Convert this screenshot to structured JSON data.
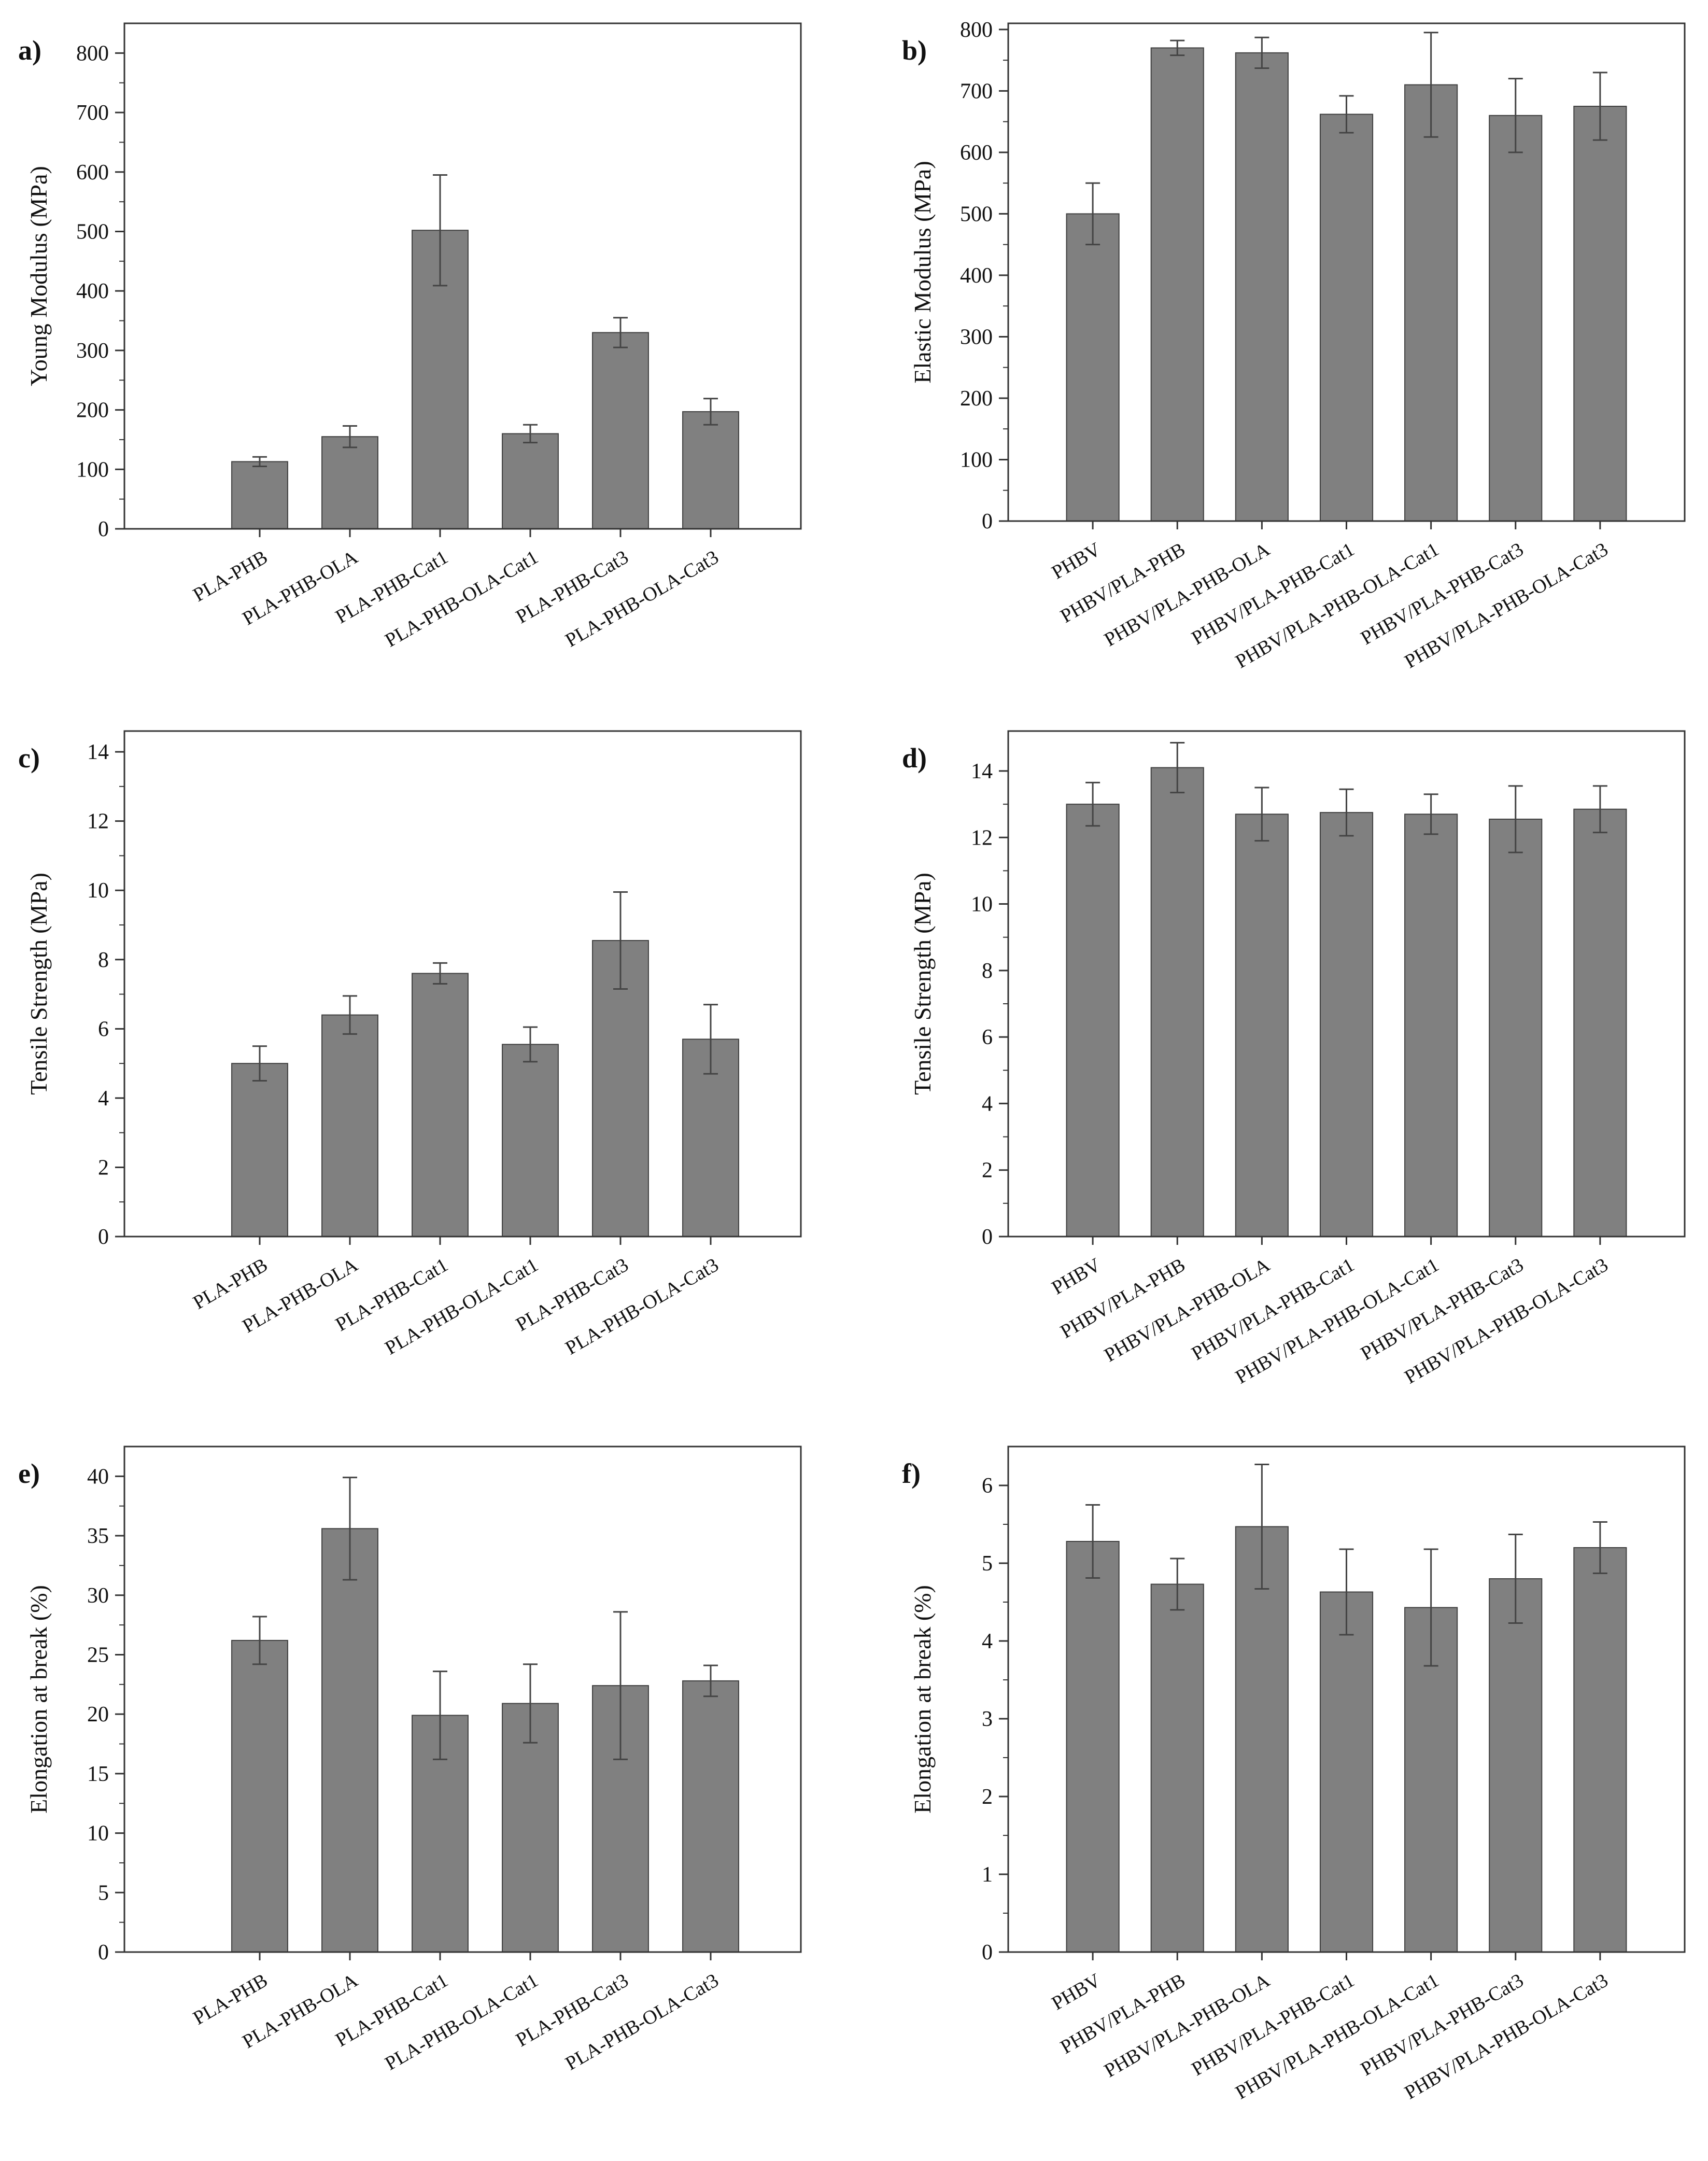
{
  "colors": {
    "bar": "#808080",
    "bar_stroke": "#404040",
    "axis": "#333333",
    "error": "#444444"
  },
  "chart_data": [
    {
      "panel": "a)",
      "type": "bar",
      "ylabel": "Young Modulus (MPa)",
      "ylim": [
        0,
        850
      ],
      "yticks": [
        0,
        100,
        200,
        300,
        400,
        500,
        600,
        700,
        800
      ],
      "categories": [
        "PLA-PHB",
        "PLA-PHB-OLA",
        "PLA-PHB-Cat1",
        "PLA-PHB-OLA-Cat1",
        "PLA-PHB-Cat3",
        "PLA-PHB-OLA-Cat3"
      ],
      "values": [
        113,
        155,
        502,
        160,
        330,
        197
      ],
      "errors": [
        8,
        18,
        93,
        15,
        25,
        22
      ],
      "xgap_left": 1.0
    },
    {
      "panel": "b)",
      "type": "bar",
      "ylabel": "Elastic Modulus (MPa)",
      "ylim": [
        0,
        810
      ],
      "yticks": [
        0,
        100,
        200,
        300,
        400,
        500,
        600,
        700,
        800
      ],
      "categories": [
        "PHBV",
        "PHBV/PLA-PHB",
        "PHBV/PLA-PHB-OLA",
        "PHBV/PLA-PHB-Cat1",
        "PHBV/PLA-PHB-OLA-Cat1",
        "PHBV/PLA-PHB-Cat3",
        "PHBV/PLA-PHB-OLA-Cat3"
      ],
      "values": [
        500,
        770,
        762,
        662,
        710,
        660,
        675
      ],
      "errors": [
        50,
        12,
        25,
        30,
        85,
        60,
        55
      ],
      "xgap_left": 0.5
    },
    {
      "panel": "c)",
      "type": "bar",
      "ylabel": "Tensile Strength (MPa)",
      "ylim": [
        0,
        14.6
      ],
      "yticks": [
        0,
        2,
        4,
        6,
        8,
        10,
        12,
        14
      ],
      "categories": [
        "PLA-PHB",
        "PLA-PHB-OLA",
        "PLA-PHB-Cat1",
        "PLA-PHB-OLA-Cat1",
        "PLA-PHB-Cat3",
        "PLA-PHB-OLA-Cat3"
      ],
      "values": [
        5.0,
        6.4,
        7.6,
        5.55,
        8.55,
        5.7
      ],
      "errors": [
        0.5,
        0.55,
        0.3,
        0.5,
        1.4,
        1.0
      ],
      "xgap_left": 1.0
    },
    {
      "panel": "d)",
      "type": "bar",
      "ylabel": "Tensile Strength (MPa)",
      "ylim": [
        0,
        15.2
      ],
      "yticks": [
        0,
        2,
        4,
        6,
        8,
        10,
        12,
        14
      ],
      "categories": [
        "PHBV",
        "PHBV/PLA-PHB",
        "PHBV/PLA-PHB-OLA",
        "PHBV/PLA-PHB-Cat1",
        "PHBV/PLA-PHB-OLA-Cat1",
        "PHBV/PLA-PHB-Cat3",
        "PHBV/PLA-PHB-OLA-Cat3"
      ],
      "values": [
        13.0,
        14.1,
        12.7,
        12.75,
        12.7,
        12.55,
        12.85
      ],
      "errors": [
        0.65,
        0.75,
        0.8,
        0.7,
        0.6,
        1.0,
        0.7
      ],
      "xgap_left": 0.5
    },
    {
      "panel": "e)",
      "type": "bar",
      "ylabel": "Elongation at break (%)",
      "ylim": [
        0,
        42.5
      ],
      "yticks": [
        0,
        5,
        10,
        15,
        20,
        25,
        30,
        35,
        40
      ],
      "categories": [
        "PLA-PHB",
        "PLA-PHB-OLA",
        "PLA-PHB-Cat1",
        "PLA-PHB-OLA-Cat1",
        "PLA-PHB-Cat3",
        "PLA-PHB-OLA-Cat3"
      ],
      "values": [
        26.2,
        35.6,
        19.9,
        20.9,
        22.4,
        22.8
      ],
      "errors": [
        2.0,
        4.3,
        3.7,
        3.3,
        6.2,
        1.3
      ],
      "xgap_left": 1.0
    },
    {
      "panel": "f)",
      "type": "bar",
      "ylabel": "Elongation at break (%)",
      "ylim": [
        0,
        6.5
      ],
      "yticks": [
        0,
        1,
        2,
        3,
        4,
        5,
        6
      ],
      "categories": [
        "PHBV",
        "PHBV/PLA-PHB",
        "PHBV/PLA-PHB-OLA",
        "PHBV/PLA-PHB-Cat1",
        "PHBV/PLA-PHB-OLA-Cat1",
        "PHBV/PLA-PHB-Cat3",
        "PHBV/PLA-PHB-OLA-Cat3"
      ],
      "values": [
        5.28,
        4.73,
        5.47,
        4.63,
        4.43,
        4.8,
        5.2
      ],
      "errors": [
        0.47,
        0.33,
        0.8,
        0.55,
        0.75,
        0.57,
        0.33
      ],
      "xgap_left": 0.5
    }
  ]
}
